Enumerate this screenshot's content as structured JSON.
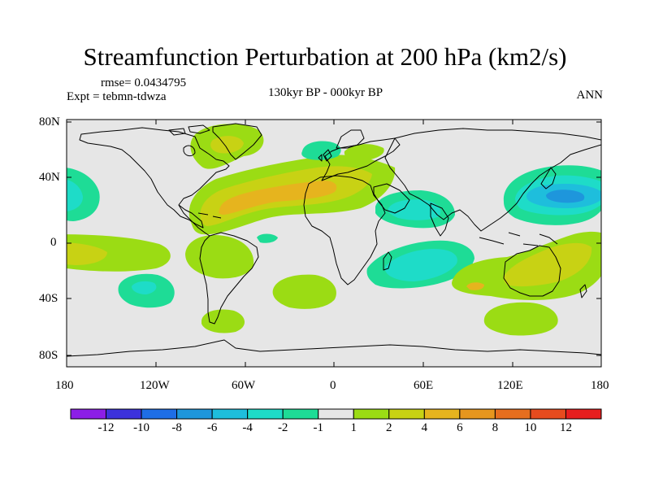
{
  "title": "Streamfunction Perturbation at 200 hPa (km2/s)",
  "rmse": "rmse= 0.0434795",
  "expt": "Expt = tebmn-tdwza",
  "period": "130kyr BP - 000kyr BP",
  "season": "ANN",
  "lat_labels": [
    "80N",
    "40N",
    "0",
    "40S",
    "80S"
  ],
  "lon_labels": [
    "180",
    "120W",
    "60W",
    "0",
    "60E",
    "120E",
    "180"
  ],
  "colorbar": {
    "labels": [
      "-12",
      "-10",
      "-8",
      "-6",
      "-4",
      "-2",
      "-1",
      "1",
      "2",
      "4",
      "6",
      "8",
      "10",
      "12"
    ],
    "colors": [
      "#8c1ee6",
      "#3c32dc",
      "#1e6ee6",
      "#1e96dc",
      "#1ebedc",
      "#1edcc8",
      "#1edc96",
      "#e6e6e6",
      "#9bdc14",
      "#c8d214",
      "#e6b41e",
      "#e6961e",
      "#e66e1e",
      "#e64b1e",
      "#e61e1e"
    ]
  },
  "colors": {
    "background": "#e6e6e6",
    "level_neg1": "#1edc96",
    "level_neg2": "#1edcc8",
    "level_neg4": "#1ebedc",
    "level_neg6": "#1e96dc",
    "level_pos1": "#9bdc14",
    "level_pos2": "#c8d214",
    "level_pos4": "#e6b41e"
  }
}
